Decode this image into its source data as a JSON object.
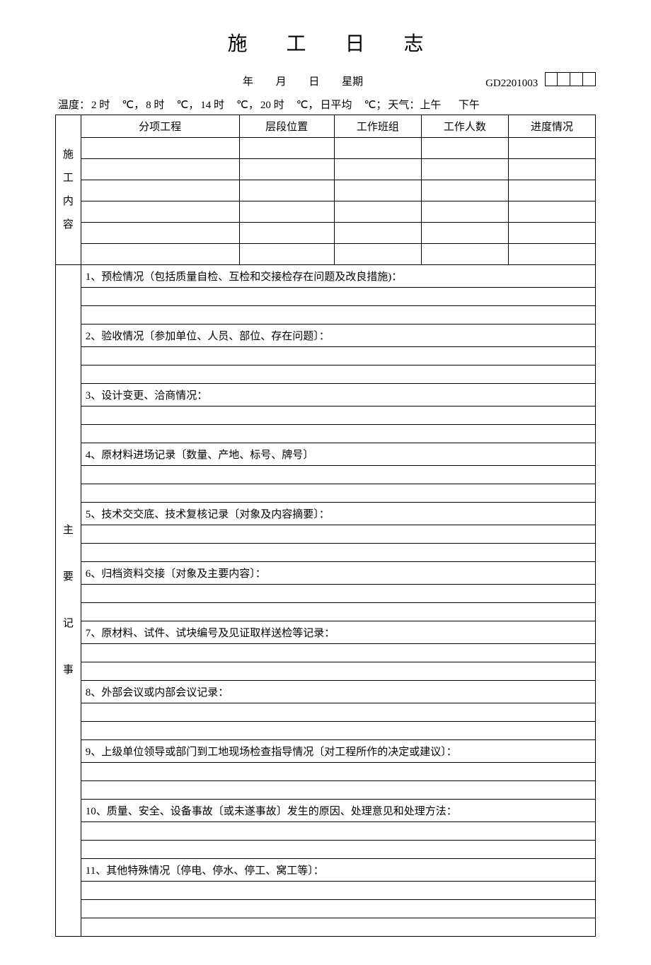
{
  "title": "施 工 日 志",
  "meta": {
    "year_label": "年",
    "month_label": "月",
    "day_label": "日",
    "weekday_label": "星期",
    "code_label": "GD2201003"
  },
  "temperature": {
    "prefix": "温度：",
    "t2": "2 时",
    "unit1": "℃，",
    "t8": "8 时",
    "unit2": "℃，",
    "t14": "14 时",
    "unit3": "℃，",
    "t20": "20 时",
    "unit4": "℃，",
    "avg": "日平均",
    "unit5": "℃；",
    "weather": "天气：上午",
    "afternoon": "下午"
  },
  "table1": {
    "side_label": "施工内容",
    "headers": {
      "subproject": "分项工程",
      "layer": "层段位置",
      "team": "工作班组",
      "people": "工作人数",
      "progress": "进度情况"
    }
  },
  "notes": {
    "side_label": "主要记事",
    "items": [
      "1、预检情况（包括质量自检、互检和交接检存在问题及改良措施)：",
      "2、验收情况〔参加单位、人员、部位、存在问题〕：",
      "3、设计变更、洽商情况：",
      "4、原材料进场记录〔数量、产地、标号、牌号〕",
      "5、技术交交底、技术复核记录〔对象及内容摘要〕：",
      "6、归档资料交接〔对象及主要内容〕：",
      "7、原材料、试件、试块编号及见证取样送检等记录：",
      "8、外部会议或内部会议记录：",
      "9、上级单位领导或部门到工地现场检查指导情况〔对工程所作的决定或建议〕：",
      "10、质量、安全、设备事故〔或未遂事故〕发生的原因、处理意见和处理方法：",
      "11、其他特殊情况〔停电、停水、停工、窝工等〕："
    ]
  }
}
